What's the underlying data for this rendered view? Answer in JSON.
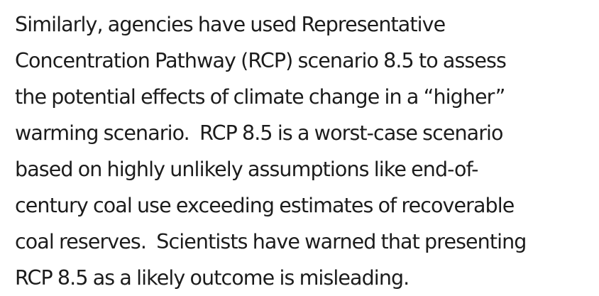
{
  "paragraph": {
    "lines": [
      "Similarly, agencies have used Representative",
      "Concentration Pathway (RCP) scenario 8.5 to assess",
      "the potential effects of climate change in a “higher”",
      "warming scenario.  RCP 8.5 is a worst-case scenario",
      "based on highly unlikely assumptions like end-of-",
      "century coal use exceeding estimates of recoverable",
      "coal reserves.  Scientists have warned that presenting",
      "RCP 8.5 as a likely outcome is misleading."
    ]
  }
}
